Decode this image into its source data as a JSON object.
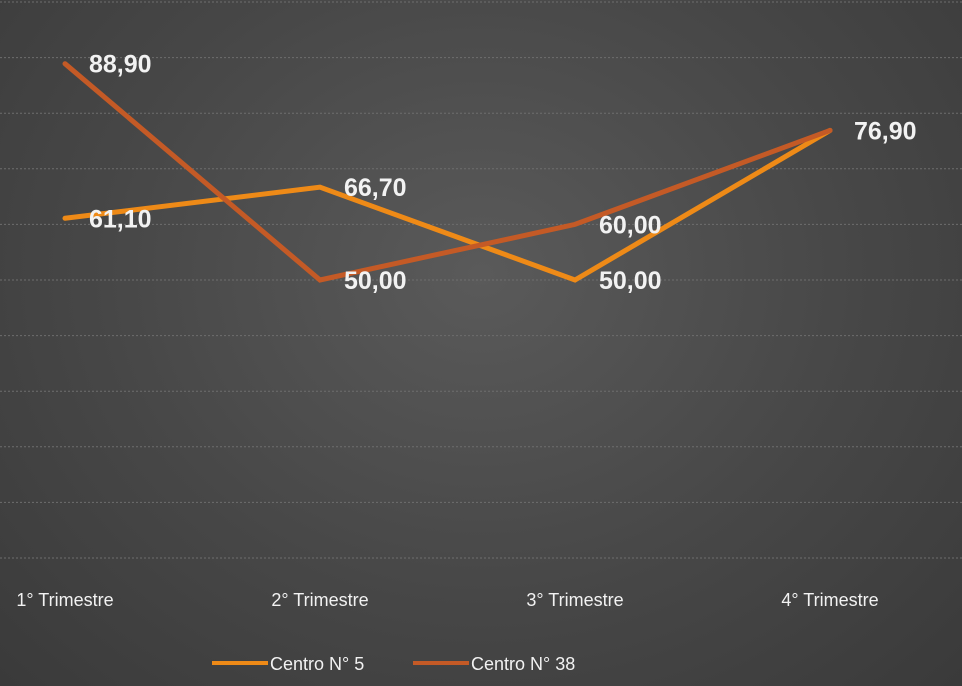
{
  "chart_data": {
    "type": "line",
    "title": "",
    "xlabel": "",
    "ylabel": "",
    "categories": [
      "1° Trimestre",
      "2° Trimestre",
      "3° Trimestre",
      "4° Trimestre"
    ],
    "ylim": [
      0,
      100
    ],
    "grid": true,
    "legend_position": "bottom",
    "series": [
      {
        "name": "Centro N° 5",
        "color": "#ee8a17",
        "values": [
          61.1,
          66.7,
          50.0,
          76.9
        ],
        "labels": [
          "61,10",
          "66,70",
          "50,00",
          "76,90"
        ]
      },
      {
        "name": "Centro N° 38",
        "color": "#c45a26",
        "values": [
          88.9,
          50.0,
          60.0,
          76.9
        ],
        "labels": [
          "88,90",
          "50,00",
          "60,00",
          "76,90"
        ]
      }
    ]
  }
}
